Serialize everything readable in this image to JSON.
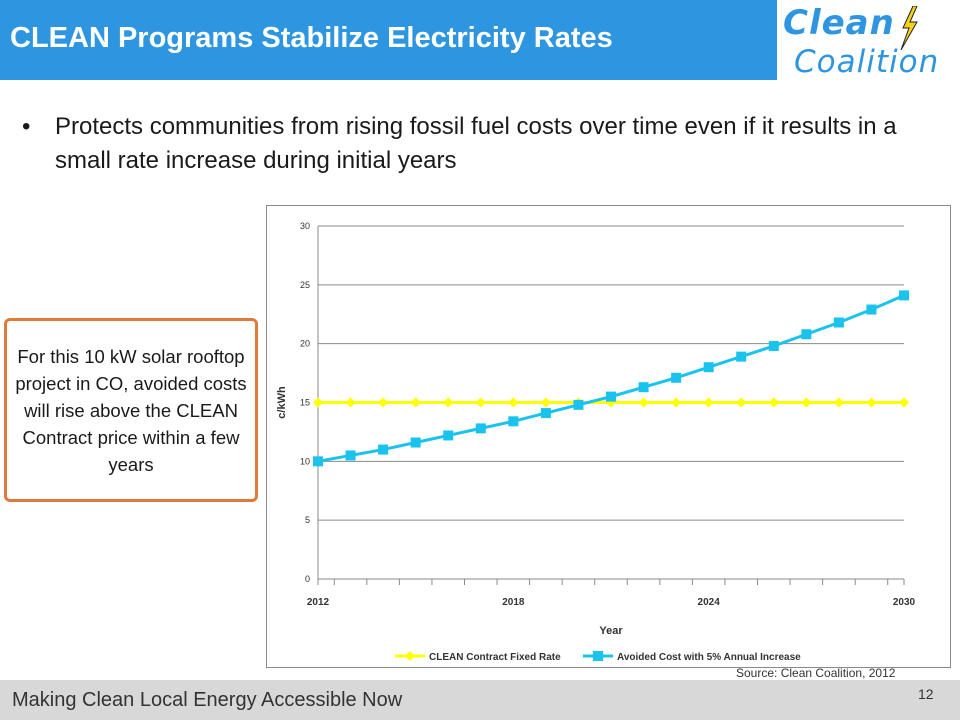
{
  "title": "CLEAN Programs Stabilize Electricity Rates",
  "logo": {
    "line1": "Clean",
    "line2": "Coalition"
  },
  "bullet": "Protects communities from rising fossil fuel costs over time even if it results in a small rate increase during initial years",
  "callout": "For this 10 kW solar rooftop project in CO, avoided costs will rise above the CLEAN Contract price within a few years",
  "source": "Source: Clean Coalition, 2012",
  "footer": {
    "text": "Making Clean Local Energy Accessible Now",
    "page": "12"
  },
  "colors": {
    "brand": "#2e95e0",
    "fixed_rate": "#ffff00",
    "avoided_cost": "#19c3ee",
    "callout_border": "#e07a3a"
  },
  "chart_data": {
    "type": "line",
    "x": [
      2012,
      2013,
      2014,
      2015,
      2016,
      2017,
      2018,
      2019,
      2020,
      2021,
      2022,
      2023,
      2024,
      2025,
      2026,
      2027,
      2028,
      2029,
      2030
    ],
    "x_tick_labels": [
      "2012",
      "2018",
      "2024",
      "2030"
    ],
    "y_ticks": [
      0,
      5,
      10,
      15,
      20,
      25,
      30
    ],
    "xlabel": "Year",
    "ylabel": "c/kWh",
    "ylim": [
      0,
      30
    ],
    "grid": true,
    "legend": "bottom",
    "series": [
      {
        "name": "CLEAN Contract Fixed Rate",
        "marker": "diamond",
        "values": [
          15,
          15,
          15,
          15,
          15,
          15,
          15,
          15,
          15,
          15,
          15,
          15,
          15,
          15,
          15,
          15,
          15,
          15,
          15
        ]
      },
      {
        "name": "Avoided Cost with 5% Annual Increase",
        "marker": "square",
        "values": [
          10.0,
          10.5,
          11.0,
          11.6,
          12.2,
          12.8,
          13.4,
          14.1,
          14.8,
          15.5,
          16.3,
          17.1,
          18.0,
          18.9,
          19.8,
          20.8,
          21.8,
          22.9,
          24.1
        ]
      }
    ]
  }
}
